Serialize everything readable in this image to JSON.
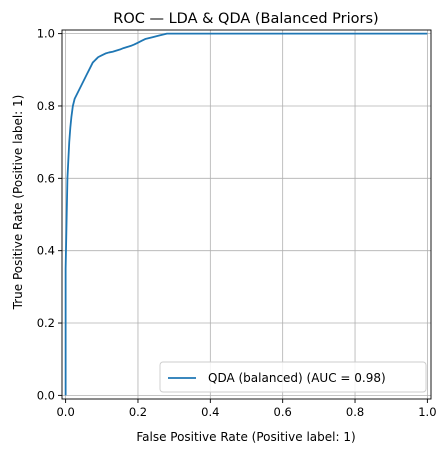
{
  "chart_data": {
    "type": "line",
    "title": "ROC — LDA & QDA (Balanced Priors)",
    "xlabel": "False Positive Rate (Positive label: 1)",
    "ylabel": "True Positive Rate (Positive label: 1)",
    "xlim": [
      -0.01,
      1.01
    ],
    "ylim": [
      -0.01,
      1.01
    ],
    "xticks": [
      0.0,
      0.2,
      0.4,
      0.6,
      0.8,
      1.0
    ],
    "yticks": [
      0.0,
      0.2,
      0.4,
      0.6,
      0.8,
      1.0
    ],
    "xtick_labels": [
      "0.0",
      "0.2",
      "0.4",
      "0.6",
      "0.8",
      "1.0"
    ],
    "ytick_labels": [
      "0.0",
      "0.2",
      "0.4",
      "0.6",
      "0.8",
      "1.0"
    ],
    "grid": true,
    "legend_position": "lower-right",
    "series": [
      {
        "name": "QDA (balanced) (AUC = 0.98)",
        "color": "#1f77b4",
        "x": [
          0.0,
          0.0,
          0.003,
          0.005,
          0.008,
          0.01,
          0.013,
          0.016,
          0.02,
          0.025,
          0.03,
          0.035,
          0.04,
          0.045,
          0.05,
          0.055,
          0.06,
          0.065,
          0.07,
          0.075,
          0.08,
          0.085,
          0.09,
          0.1,
          0.11,
          0.12,
          0.13,
          0.14,
          0.15,
          0.16,
          0.17,
          0.18,
          0.19,
          0.2,
          0.21,
          0.22,
          0.24,
          0.26,
          0.28,
          0.3,
          0.4,
          0.5,
          0.6,
          0.7,
          0.8,
          0.9,
          1.0
        ],
        "y": [
          0.0,
          0.35,
          0.5,
          0.6,
          0.66,
          0.7,
          0.74,
          0.77,
          0.8,
          0.82,
          0.83,
          0.84,
          0.85,
          0.86,
          0.87,
          0.88,
          0.89,
          0.9,
          0.91,
          0.92,
          0.925,
          0.93,
          0.935,
          0.94,
          0.945,
          0.948,
          0.95,
          0.953,
          0.956,
          0.96,
          0.963,
          0.966,
          0.97,
          0.975,
          0.98,
          0.985,
          0.99,
          0.995,
          1.0,
          1.0,
          1.0,
          1.0,
          1.0,
          1.0,
          1.0,
          1.0,
          1.0
        ]
      }
    ]
  }
}
